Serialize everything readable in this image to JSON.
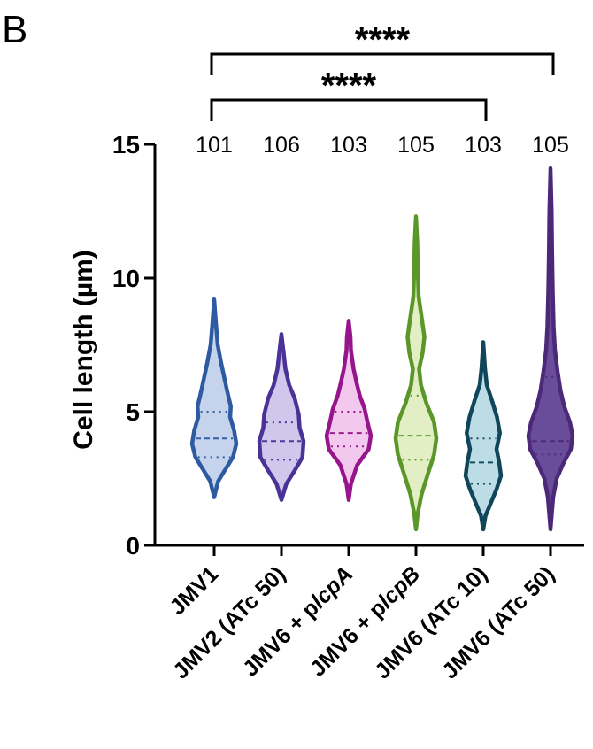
{
  "panel_label": "B",
  "chart_data": {
    "type": "violin",
    "ylabel": "Cell length (µm)",
    "ylim": [
      0,
      15
    ],
    "yticks": [
      0,
      5,
      10,
      15
    ],
    "categories": [
      [
        {
          "t": "JMV1"
        }
      ],
      [
        {
          "t": "JMV2 (ATc 50)"
        }
      ],
      [
        {
          "t": "JMV6 + p"
        },
        {
          "t": "lcpA",
          "italic": true
        }
      ],
      [
        {
          "t": "JMV6 + p"
        },
        {
          "t": "lcpB",
          "italic": true
        }
      ],
      [
        {
          "t": "JMV6 (ATc 10)"
        }
      ],
      [
        {
          "t": "JMV6 (ATc 50)"
        }
      ]
    ],
    "counts": [
      "101",
      "106",
      "103",
      "105",
      "103",
      "105"
    ],
    "series": [
      {
        "color": "#2d5aa0",
        "fill": "#c5d3ec",
        "min": 1.8,
        "max": 9.2,
        "median": 4.0,
        "q1": 3.3,
        "q3": 5.0,
        "profile": [
          [
            1.8,
            0
          ],
          [
            2.4,
            0.18
          ],
          [
            2.9,
            0.55
          ],
          [
            3.3,
            0.85
          ],
          [
            3.8,
            1.0
          ],
          [
            4.3,
            0.9
          ],
          [
            4.8,
            0.72
          ],
          [
            5.2,
            0.75
          ],
          [
            5.8,
            0.58
          ],
          [
            6.3,
            0.45
          ],
          [
            6.8,
            0.32
          ],
          [
            7.5,
            0.16
          ],
          [
            8.3,
            0.08
          ],
          [
            9.2,
            0
          ]
        ]
      },
      {
        "color": "#4b3296",
        "fill": "#d0c8ec",
        "min": 1.7,
        "max": 7.9,
        "median": 3.9,
        "q1": 3.2,
        "q3": 4.6,
        "profile": [
          [
            1.7,
            0
          ],
          [
            2.3,
            0.22
          ],
          [
            2.8,
            0.6
          ],
          [
            3.3,
            0.95
          ],
          [
            3.9,
            1.0
          ],
          [
            4.4,
            0.82
          ],
          [
            4.9,
            0.78
          ],
          [
            5.5,
            0.6
          ],
          [
            6.0,
            0.35
          ],
          [
            6.6,
            0.18
          ],
          [
            7.2,
            0.1
          ],
          [
            7.9,
            0
          ]
        ]
      },
      {
        "color": "#96148c",
        "fill": "#f3c8ee",
        "min": 1.7,
        "max": 8.4,
        "median": 4.2,
        "q1": 3.7,
        "q3": 5.0,
        "profile": [
          [
            1.7,
            0
          ],
          [
            2.3,
            0.1
          ],
          [
            3.0,
            0.38
          ],
          [
            3.6,
            0.9
          ],
          [
            4.1,
            1.0
          ],
          [
            4.6,
            0.85
          ],
          [
            5.1,
            0.72
          ],
          [
            5.6,
            0.5
          ],
          [
            6.1,
            0.35
          ],
          [
            6.6,
            0.22
          ],
          [
            7.3,
            0.1
          ],
          [
            7.8,
            0.08
          ],
          [
            8.4,
            0
          ]
        ]
      },
      {
        "color": "#5a9628",
        "fill": "#e2efc5",
        "min": 0.6,
        "max": 12.3,
        "median": 4.1,
        "q1": 3.2,
        "q3": 5.6,
        "profile": [
          [
            0.6,
            0
          ],
          [
            1.2,
            0.08
          ],
          [
            1.9,
            0.25
          ],
          [
            2.7,
            0.55
          ],
          [
            3.4,
            0.82
          ],
          [
            4.0,
            0.92
          ],
          [
            4.6,
            0.82
          ],
          [
            5.3,
            0.48
          ],
          [
            6.0,
            0.22
          ],
          [
            6.6,
            0.14
          ],
          [
            7.2,
            0.3
          ],
          [
            7.8,
            0.38
          ],
          [
            8.5,
            0.26
          ],
          [
            9.3,
            0.12
          ],
          [
            10.3,
            0.08
          ],
          [
            11.3,
            0.06
          ],
          [
            12.3,
            0
          ]
        ]
      },
      {
        "color": "#0f465a",
        "fill": "#bcdce6",
        "min": 0.6,
        "max": 7.6,
        "median": 3.1,
        "q1": 2.3,
        "q3": 4.0,
        "profile": [
          [
            0.6,
            0
          ],
          [
            1.1,
            0.1
          ],
          [
            1.6,
            0.35
          ],
          [
            2.1,
            0.6
          ],
          [
            2.6,
            0.8
          ],
          [
            3.1,
            0.72
          ],
          [
            3.6,
            0.6
          ],
          [
            4.2,
            0.75
          ],
          [
            4.8,
            0.62
          ],
          [
            5.4,
            0.4
          ],
          [
            6.0,
            0.16
          ],
          [
            6.6,
            0.08
          ],
          [
            7.6,
            0
          ]
        ]
      },
      {
        "color": "#4b2878",
        "fill": "#6a4d9a",
        "min": 0.6,
        "max": 14.1,
        "median": 3.9,
        "q1": 3.4,
        "q3": 6.3,
        "profile": [
          [
            0.6,
            0
          ],
          [
            1.1,
            0.05
          ],
          [
            1.8,
            0.12
          ],
          [
            2.5,
            0.28
          ],
          [
            3.1,
            0.6
          ],
          [
            3.6,
            0.92
          ],
          [
            4.1,
            1.0
          ],
          [
            4.6,
            0.88
          ],
          [
            5.2,
            0.62
          ],
          [
            5.8,
            0.45
          ],
          [
            6.5,
            0.32
          ],
          [
            7.3,
            0.2
          ],
          [
            8.2,
            0.14
          ],
          [
            9.5,
            0.1
          ],
          [
            11.0,
            0.07
          ],
          [
            12.5,
            0.05
          ],
          [
            14.1,
            0
          ]
        ]
      }
    ],
    "significance": [
      {
        "from": 0,
        "to": 5,
        "label": "****"
      },
      {
        "from": 0,
        "to": 4,
        "label": "****"
      }
    ]
  }
}
